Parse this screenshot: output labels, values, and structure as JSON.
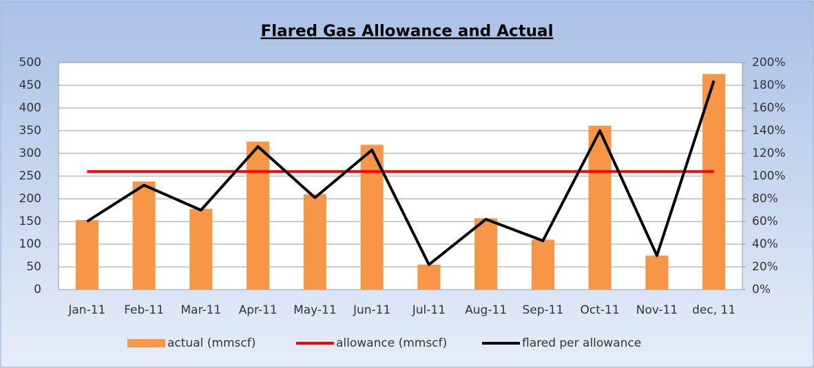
{
  "chart_data": {
    "type": "bar",
    "title": "Flared Gas Allowance and Actual",
    "categories": [
      "Jan-11",
      "Feb-11",
      "Mar-11",
      "Apr-11",
      "May-11",
      "Jun-11",
      "Jul-11",
      "Aug-11",
      "Sep-11",
      "Oct-11",
      "Nov-11",
      "dec, 11"
    ],
    "series": [
      {
        "name": "actual (mmscf)",
        "type": "bar",
        "color": "#f79646",
        "values": [
          153,
          238,
          178,
          326,
          210,
          319,
          55,
          157,
          110,
          361,
          75,
          475
        ]
      },
      {
        "name": "allowance (mmscf)",
        "type": "line",
        "color": "#ff0000",
        "values": [
          260,
          260,
          260,
          260,
          260,
          260,
          260,
          260,
          260,
          260,
          260,
          260
        ]
      },
      {
        "name": "flared per allowance",
        "type": "line",
        "color": "#000000",
        "axis": "y2",
        "values": [
          60,
          92,
          70,
          126,
          81,
          123,
          22,
          62,
          43,
          140,
          30,
          184
        ]
      }
    ],
    "ylim": [
      0,
      500
    ],
    "yticks": [
      0,
      50,
      100,
      150,
      200,
      250,
      300,
      350,
      400,
      450,
      500
    ],
    "y2lim": [
      0,
      200
    ],
    "y2ticks": [
      {
        "value": 0,
        "label": "0%"
      },
      {
        "value": 20,
        "label": "20%"
      },
      {
        "value": 40,
        "label": "40%"
      },
      {
        "value": 60,
        "label": "60%"
      },
      {
        "value": 80,
        "label": "80%"
      },
      {
        "value": 100,
        "label": "100%"
      },
      {
        "value": 120,
        "label": "120%"
      },
      {
        "value": 140,
        "label": "140%"
      },
      {
        "value": 160,
        "label": "160%"
      },
      {
        "value": 180,
        "label": "180%"
      },
      {
        "value": 200,
        "label": "200%"
      }
    ],
    "grid": true,
    "legend": "bottom"
  }
}
